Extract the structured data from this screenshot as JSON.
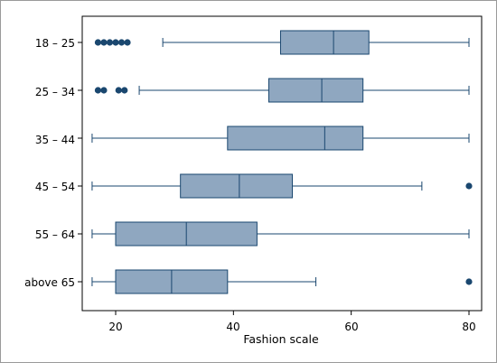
{
  "chart_data": {
    "type": "boxplot",
    "orientation": "horizontal",
    "xlabel": "Fashion scale",
    "xlim": [
      14.5,
      82.5
    ],
    "xticks": [
      "20",
      "40",
      "60",
      "80"
    ],
    "grid": false,
    "colors": {
      "box": "#8fa7c0",
      "line": "#1a476f",
      "outlier": "#1a476f"
    },
    "categories": [
      "18 – 25",
      "25 – 34",
      "35 – 44",
      "45 – 54",
      "55 – 64",
      "above 65"
    ],
    "boxes": [
      {
        "label": "18 – 25",
        "whisker_low": 28,
        "q1": 48,
        "median": 57,
        "q3": 63,
        "whisker_high": 80,
        "outliers": [
          17,
          18,
          19,
          20,
          21,
          22
        ]
      },
      {
        "label": "25 – 34",
        "whisker_low": 24,
        "q1": 46,
        "median": 55,
        "q3": 62,
        "whisker_high": 80,
        "outliers": [
          17,
          18,
          20.5,
          21.5
        ]
      },
      {
        "label": "35 – 44",
        "whisker_low": 16,
        "q1": 39,
        "median": 55.5,
        "q3": 62,
        "whisker_high": 80,
        "outliers": []
      },
      {
        "label": "45 – 54",
        "whisker_low": 16,
        "q1": 31,
        "median": 41,
        "q3": 50,
        "whisker_high": 72,
        "outliers": [
          80
        ]
      },
      {
        "label": "55 – 64",
        "whisker_low": 16,
        "q1": 20,
        "median": 32,
        "q3": 44,
        "whisker_high": 80,
        "outliers": []
      },
      {
        "label": "above 65",
        "whisker_low": 16,
        "q1": 20,
        "median": 29.5,
        "q3": 39,
        "whisker_high": 54,
        "outliers": [
          80
        ]
      }
    ]
  }
}
